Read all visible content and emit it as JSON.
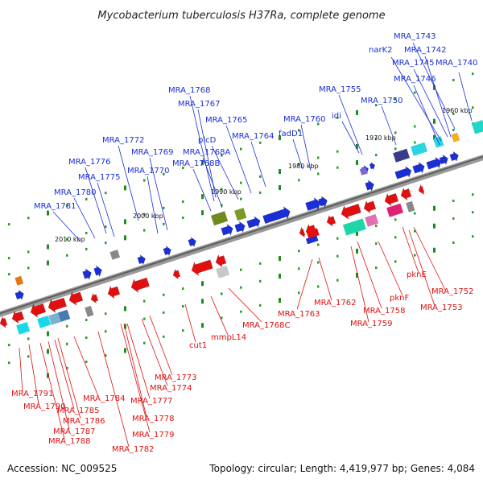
{
  "title": "Mycobacterium tuberculosis H37Ra, complete genome",
  "footer": {
    "accession": "Accession: NC_009525",
    "summary": "Topology: circular; Length: 4,419,977 bp; Genes: 4,084"
  },
  "colors": {
    "forward": "#1a2fd6",
    "reverse": "#e01010",
    "backbone": "#808080"
  },
  "ticks": [
    "1960 kbp",
    "1970 kbp",
    "1980 kbp",
    "1990 kbp",
    "2000 kbp",
    "2010 kbp"
  ],
  "forward_labels": [
    "MRA_1743",
    "MRA_1742",
    "narK2",
    "MRA_1745",
    "MRA_1740",
    "MRA_1746",
    "MRA_1755",
    "MRA_1750",
    "MRA_1768",
    "MRA_1767",
    "MRA_1760",
    "idi",
    "MRA_1765",
    "plcD",
    "fadD1",
    "MRA_1772",
    "MRA_1764",
    "MRA_1769",
    "MRA_1768A",
    "MRA_1776",
    "MRA_1770",
    "MRA_1768B",
    "MRA_1775",
    "MRA_1780",
    "MRA_1781"
  ],
  "reverse_labels": [
    "pknE",
    "MRA_1752",
    "MRA_1753",
    "pknF",
    "MRA_1763",
    "MRA_1762",
    "MRA_1758",
    "MRA_1759",
    "MRA_1768C",
    "mmpL14",
    "cut1",
    "MRA_1773",
    "MRA_1774",
    "MRA_1791",
    "MRA_1784",
    "MRA_1777",
    "MRA_1790",
    "MRA_1785",
    "MRA_1786",
    "MRA_1778",
    "MRA_1787",
    "MRA_1779",
    "MRA_1788",
    "MRA_1782"
  ]
}
